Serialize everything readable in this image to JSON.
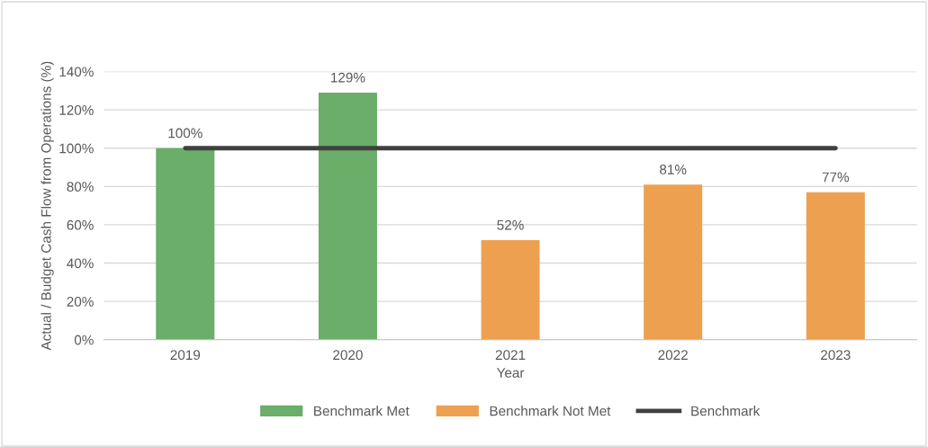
{
  "chart_data": {
    "type": "bar",
    "xlabel": "Year",
    "ylabel": "Actual / Budget Cash Flow from Operations (%)",
    "categories": [
      "2019",
      "2020",
      "2021",
      "2022",
      "2023"
    ],
    "series": [
      {
        "name": "Benchmark Met",
        "color": "#6aae6a",
        "values": [
          100,
          129,
          null,
          null,
          null
        ],
        "value_labels": [
          "100%",
          "129%",
          null,
          null,
          null
        ]
      },
      {
        "name": "Benchmark Not Met",
        "color": "#eda050",
        "values": [
          null,
          null,
          52,
          81,
          77
        ],
        "value_labels": [
          null,
          null,
          "52%",
          "81%",
          "77%"
        ]
      },
      {
        "name": "Benchmark",
        "type": "line",
        "color": "#404040",
        "values": [
          100,
          100,
          100,
          100,
          100
        ]
      }
    ],
    "ylim": [
      0,
      140
    ],
    "yticks": [
      {
        "value": 0,
        "label": "0%"
      },
      {
        "value": 20,
        "label": "20%"
      },
      {
        "value": 40,
        "label": "40%"
      },
      {
        "value": 60,
        "label": "60%"
      },
      {
        "value": 80,
        "label": "80%"
      },
      {
        "value": 100,
        "label": "100%"
      },
      {
        "value": 120,
        "label": "120%"
      },
      {
        "value": 140,
        "label": "140%"
      }
    ],
    "grid": "y",
    "legend": "bottom"
  }
}
